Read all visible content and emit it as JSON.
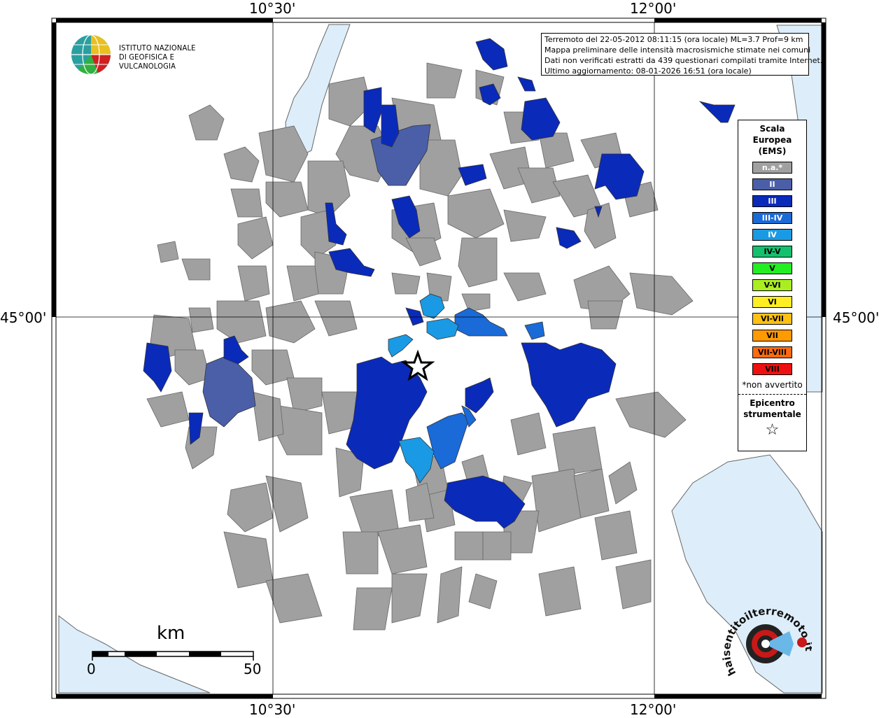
{
  "coordinates": {
    "lon_left": "10°30'",
    "lon_right": "12°00'",
    "lat_mid": "45°00'"
  },
  "info": {
    "line1": "Terremoto del 22-05-2012 08:11:15 (ora locale) ML=3.7 Prof=9 km",
    "line2": "Mappa preliminare delle intensità macrosismiche stimate nei comuni",
    "line3": "Dati non verificati estratti da 439 questionari compilati tramite Internet.",
    "line4": "Ultimo aggiornamento: 08-01-2026 16:51 (ora locale)"
  },
  "logo": {
    "line1": "ISTITUTO NAZIONALE",
    "line2": "DI GEOFISICA E VULCANOLOGIA",
    "icon": "ingv-globe-icon"
  },
  "legend": {
    "title1": "Scala",
    "title2": "Europea",
    "title3": "(EMS)",
    "items": [
      {
        "label": "n.a.*",
        "color": "#a0a0a0",
        "text_color": "#ffffff"
      },
      {
        "label": "II",
        "color": "#4a5fa8",
        "text_color": "#ffffff"
      },
      {
        "label": "III",
        "color": "#0a2aba",
        "text_color": "#ffffff"
      },
      {
        "label": "III-IV",
        "color": "#1a6ad8",
        "text_color": "#ffffff"
      },
      {
        "label": "IV",
        "color": "#1a9ae4",
        "text_color": "#ffffff"
      },
      {
        "label": "IV-V",
        "color": "#14c06e",
        "text_color": "#000000"
      },
      {
        "label": "V",
        "color": "#22ee22",
        "text_color": "#000000"
      },
      {
        "label": "V-VI",
        "color": "#aaee22",
        "text_color": "#000000"
      },
      {
        "label": "VI",
        "color": "#ffee22",
        "text_color": "#000000"
      },
      {
        "label": "VI-VII",
        "color": "#ffc012",
        "text_color": "#000000"
      },
      {
        "label": "VII",
        "color": "#ff9a00",
        "text_color": "#000000"
      },
      {
        "label": "VII-VIII",
        "color": "#ff6a10",
        "text_color": "#000000"
      },
      {
        "label": "VIII",
        "color": "#ee1010",
        "text_color": "#000000"
      }
    ],
    "note": "*non avvertito",
    "epi1": "Epicentro",
    "epi2": "strumentale",
    "star": "☆"
  },
  "scale": {
    "unit": "km",
    "min": "0",
    "max": "50"
  },
  "colors": {
    "water": "#ddeefa",
    "na": "#a0a0a0",
    "II": "#4a5fa8",
    "III": "#0a2aba",
    "III-IV": "#1a6ad8",
    "IV": "#1a9ae4"
  },
  "hs_logo": {
    "text": "haisentitoilterremoto.it",
    "icon": "haisentito-logo-icon"
  }
}
